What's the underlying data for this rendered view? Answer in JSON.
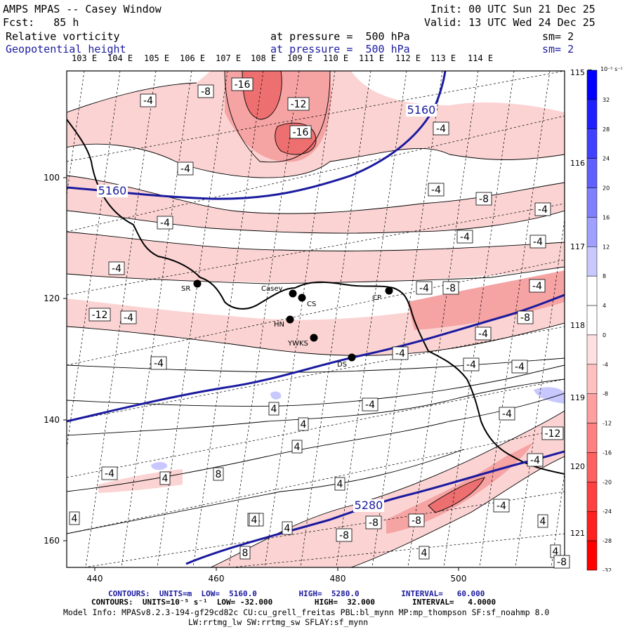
{
  "header": {
    "title": "AMPS MPAS -- Casey Window",
    "fcst": "Fcst:   85 h",
    "init": "Init: 00 UTC Sun 21 Dec 25",
    "valid": "Valid: 13 UTC Wed 24 Dec 25",
    "field1": "Relative vorticity",
    "field1_level": "at pressure =  500 hPa",
    "field1_sm": "sm= 2",
    "field2": "Geopotential height",
    "field2_level": "at pressure =  500 hPa",
    "field2_sm": "sm= 2"
  },
  "top_lon_labels": [
    "103 E",
    "104 E",
    "105 E",
    "106 E",
    "107 E",
    "108 E",
    "109 E",
    "110 E",
    "111 E",
    "112 E",
    "113 E",
    "114 E"
  ],
  "right_lon_labels": [
    "115 E",
    "116 E",
    "117 E",
    "118 E",
    "119 E",
    "120 E",
    "121 E"
  ],
  "x_ticks": [
    "440",
    "460",
    "480",
    "500"
  ],
  "y_ticks": [
    "100",
    "120",
    "140",
    "160"
  ],
  "stations": [
    {
      "label": "SR"
    },
    {
      "label": "Casey"
    },
    {
      "label": "CS"
    },
    {
      "label": "CP"
    },
    {
      "label": "HN"
    },
    {
      "label": "YWKS"
    },
    {
      "label": "DS"
    }
  ],
  "height_labels": [
    "5160",
    "5160",
    "5280"
  ],
  "vort_labels": [
    "-16",
    "-12",
    "-16",
    "-8",
    "-4",
    "-4",
    "-4",
    "-4",
    "-8",
    "-4",
    "-4",
    "-4",
    "-4",
    "-4",
    "-4",
    "-8",
    "-12",
    "-4",
    "-4",
    "-8",
    "-4",
    "-4",
    "-4",
    "-4",
    "-4",
    "-4",
    "4",
    "4",
    "-4",
    "4",
    "-4",
    "4",
    "8",
    "4",
    "-4",
    "-4",
    "-12",
    "-8",
    "-8",
    "-4",
    "4",
    "4",
    "4",
    "4",
    "-8",
    "4",
    "4",
    "8",
    "-8"
  ],
  "colorbar": {
    "unit": "10⁻⁵ s⁻¹",
    "labels": [
      "32",
      "28",
      "24",
      "20",
      "16",
      "12",
      "8",
      "4",
      "0",
      "-4",
      "-8",
      "-12",
      "-16",
      "-20",
      "-24",
      "-28",
      "-32"
    ],
    "colors": [
      "#0000ff",
      "#2020ff",
      "#4040ff",
      "#6060ff",
      "#8080ff",
      "#a0a0ff",
      "#c8c8ff",
      "#ffffff",
      "#ffffff",
      "#ffe0e0",
      "#ffc0c0",
      "#ffa0a0",
      "#ff8080",
      "#ff6060",
      "#ff4040",
      "#ff2020",
      "#ff0000"
    ]
  },
  "footer": {
    "line1": "CONTOURS:  UNITS=m  LOW=  5160.0         HIGH=  5280.0         INTERVAL=   60.000",
    "line2": "CONTOURS:  UNITS=10⁻⁵ s⁻¹  LOW= -32.000         HIGH=  32.000        INTERVAL=   4.0000",
    "line3": "Model Info: MPASv8.2.3-194-gf29cd82c CU:cu_grell_freitas PBL:bl_mynn MP:mp_thompson SF:sf_noahmp 8.0",
    "line4": "LW:rrtmg_lw SW:rrtmg_sw SFLAY:sf_mynn"
  },
  "colors": {
    "height_contour": "#1a1aa0",
    "neg_vort_light": "#fbd3d3",
    "neg_vort_mid": "#f5a3a3",
    "neg_vort_dark": "#ee6f6f",
    "coast": "#000000"
  }
}
